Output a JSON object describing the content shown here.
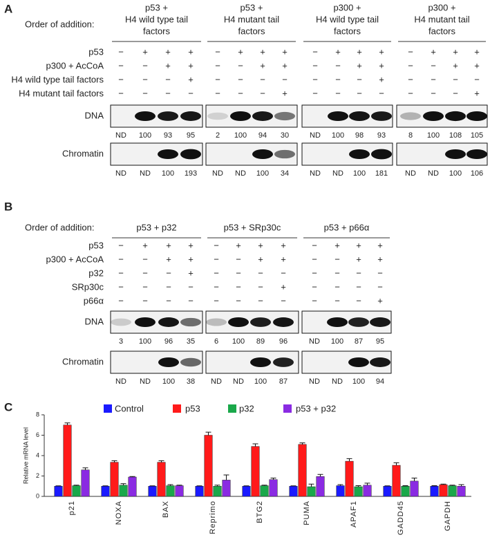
{
  "panel_a": {
    "label": "A",
    "order_label": "Order of addition:",
    "rows": [
      "p53",
      "p300 + AcCoA",
      "H4 wild type tail factors",
      "H4 mutant tail factors"
    ],
    "blot_labels": [
      "DNA",
      "Chromatin"
    ],
    "groups": [
      {
        "title": [
          "p53 +",
          "H4 wild type tail",
          "factors"
        ],
        "signs": [
          [
            "−",
            "+",
            "+",
            "+"
          ],
          [
            "−",
            "−",
            "+",
            "+"
          ],
          [
            "−",
            "−",
            "−",
            "+"
          ],
          [
            "−",
            "−",
            "−",
            "−"
          ]
        ],
        "dna": [
          "ND",
          100,
          93,
          95
        ],
        "chromatin": [
          "ND",
          "ND",
          100,
          193
        ]
      },
      {
        "title": [
          "p53 +",
          "H4 mutant tail",
          "factors"
        ],
        "signs": [
          [
            "−",
            "+",
            "+",
            "+"
          ],
          [
            "−",
            "−",
            "+",
            "+"
          ],
          [
            "−",
            "−",
            "−",
            "−"
          ],
          [
            "−",
            "−",
            "−",
            "+"
          ]
        ],
        "dna": [
          2,
          100,
          94,
          30
        ],
        "chromatin": [
          "ND",
          "ND",
          100,
          34
        ]
      },
      {
        "title": [
          "p300 +",
          "H4 wild type tail",
          "factors"
        ],
        "signs": [
          [
            "−",
            "+",
            "+",
            "+"
          ],
          [
            "−",
            "−",
            "+",
            "+"
          ],
          [
            "−",
            "−",
            "−",
            "+"
          ],
          [
            "−",
            "−",
            "−",
            "−"
          ]
        ],
        "dna": [
          "ND",
          100,
          98,
          93
        ],
        "chromatin": [
          "ND",
          "ND",
          100,
          181
        ]
      },
      {
        "title": [
          "p300 +",
          "H4 mutant tail",
          "factors"
        ],
        "signs": [
          [
            "−",
            "+",
            "+",
            "+"
          ],
          [
            "−",
            "−",
            "+",
            "+"
          ],
          [
            "−",
            "−",
            "−",
            "−"
          ],
          [
            "−",
            "−",
            "−",
            "+"
          ]
        ],
        "dna": [
          8,
          100,
          108,
          105
        ],
        "chromatin": [
          "ND",
          "ND",
          100,
          106
        ]
      }
    ]
  },
  "panel_b": {
    "label": "B",
    "order_label": "Order of addition:",
    "rows": [
      "p53",
      "p300 + AcCoA",
      "p32",
      "SRp30c",
      "p66α"
    ],
    "blot_labels": [
      "DNA",
      "Chromatin"
    ],
    "groups": [
      {
        "title": [
          "p53 + p32"
        ],
        "signs": [
          [
            "−",
            "+",
            "+",
            "+"
          ],
          [
            "−",
            "−",
            "+",
            "+"
          ],
          [
            "−",
            "−",
            "−",
            "+"
          ],
          [
            "−",
            "−",
            "−",
            "−"
          ],
          [
            "−",
            "−",
            "−",
            "−"
          ]
        ],
        "dna": [
          3,
          100,
          96,
          35
        ],
        "chromatin": [
          "ND",
          "ND",
          100,
          38
        ]
      },
      {
        "title": [
          "p53 + SRp30c"
        ],
        "signs": [
          [
            "−",
            "+",
            "+",
            "+"
          ],
          [
            "−",
            "−",
            "+",
            "+"
          ],
          [
            "−",
            "−",
            "−",
            "−"
          ],
          [
            "−",
            "−",
            "−",
            "+"
          ],
          [
            "−",
            "−",
            "−",
            "−"
          ]
        ],
        "dna": [
          6,
          100,
          89,
          96
        ],
        "chromatin": [
          "ND",
          "ND",
          100,
          87
        ]
      },
      {
        "title": [
          "p53 + p66α"
        ],
        "signs": [
          [
            "−",
            "+",
            "+",
            "+"
          ],
          [
            "−",
            "−",
            "+",
            "+"
          ],
          [
            "−",
            "−",
            "−",
            "−"
          ],
          [
            "−",
            "−",
            "−",
            "−"
          ],
          [
            "−",
            "−",
            "−",
            "+"
          ]
        ],
        "dna": [
          "ND",
          100,
          87,
          95
        ],
        "chromatin": [
          "ND",
          "ND",
          100,
          94
        ]
      }
    ]
  },
  "chart_data": {
    "type": "bar",
    "panel_label": "C",
    "ylabel": "Relative mRNA level",
    "categories": [
      "p21",
      "NOXA",
      "BAX",
      "Reprimo",
      "BTG2",
      "PUMA",
      "APAF1",
      "GADD45",
      "GAPDH"
    ],
    "series": [
      {
        "name": "Control",
        "color": "#1a1aff",
        "values": [
          1,
          1,
          1,
          1,
          1,
          1,
          1.05,
          1,
          1
        ],
        "errors": [
          0.03,
          0.03,
          0.03,
          0.03,
          0.03,
          0.03,
          0.1,
          0.03,
          0.05
        ]
      },
      {
        "name": "p53",
        "color": "#ff1a1a",
        "values": [
          7.0,
          3.35,
          3.35,
          6.0,
          4.9,
          5.1,
          3.45,
          3.05,
          1.15
        ],
        "errors": [
          0.2,
          0.15,
          0.15,
          0.3,
          0.25,
          0.15,
          0.25,
          0.25,
          0.05
        ]
      },
      {
        "name": "p32",
        "color": "#1aa84a",
        "values": [
          1.05,
          1.1,
          1.05,
          1.0,
          1.05,
          0.95,
          0.95,
          1.0,
          1.05
        ],
        "errors": [
          0.05,
          0.15,
          0.1,
          0.1,
          0.05,
          0.25,
          0.1,
          0.05,
          0.05
        ]
      },
      {
        "name": "p53 + p32",
        "color": "#8a2be2",
        "values": [
          2.6,
          1.9,
          1.05,
          1.6,
          1.65,
          1.95,
          1.1,
          1.5,
          1.0
        ],
        "errors": [
          0.2,
          0.05,
          0.05,
          0.5,
          0.15,
          0.2,
          0.2,
          0.3,
          0.15
        ]
      }
    ],
    "ylim": [
      0,
      8
    ],
    "yticks": [
      0,
      2,
      4,
      6,
      8
    ]
  }
}
